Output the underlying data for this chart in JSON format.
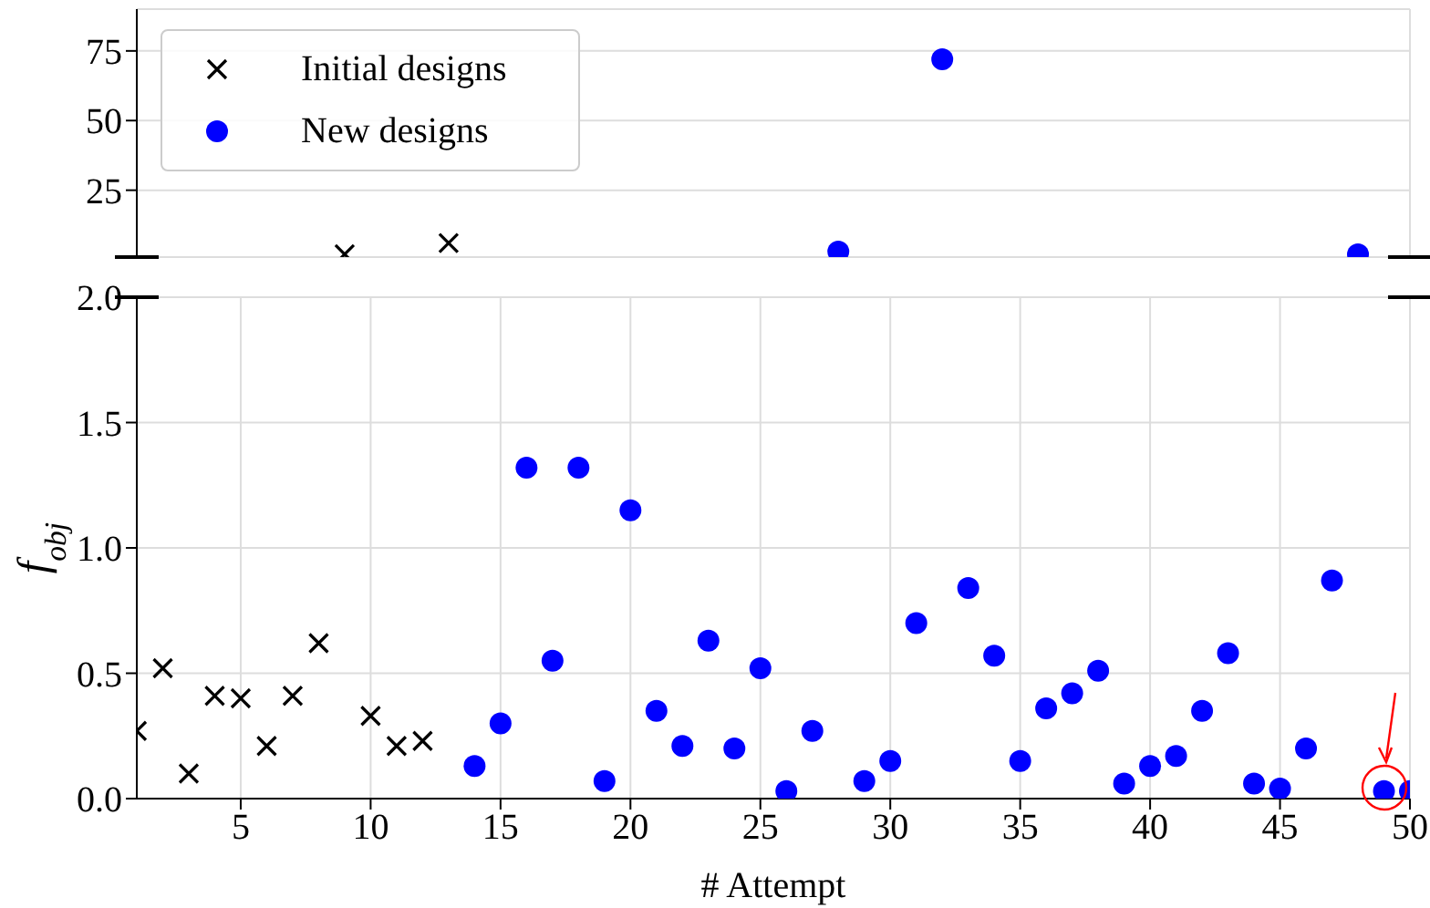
{
  "chart_data": [
    {
      "type": "scatter",
      "xlim": [
        1,
        50
      ],
      "xticks": [
        5,
        10,
        15,
        20,
        25,
        30,
        35,
        40,
        45,
        50
      ],
      "ylim": [
        1,
        90
      ],
      "yticks": [
        25,
        50,
        75
      ],
      "grid": true,
      "legend": "top left",
      "tick_labels": "y",
      "series": [
        {
          "name": "Initial designs",
          "color": "#000000",
          "marker": "cross",
          "x": [
            9,
            13
          ],
          "values": [
            2,
            6
          ]
        },
        {
          "name": "New designs",
          "color": "#0000ff",
          "marker": "circle",
          "x": [
            28,
            32,
            48
          ],
          "values": [
            3,
            72,
            2
          ]
        }
      ]
    },
    {
      "type": "scatter",
      "xlabel": "# Attempt",
      "ylabel": "f$_{obj}$",
      "xlim": [
        1,
        50
      ],
      "xticks": [
        5,
        10,
        15,
        20,
        25,
        30,
        35,
        40,
        45,
        50
      ],
      "ylim": [
        0,
        2
      ],
      "yticks": [
        {
          "value": 0,
          "label": "0.0"
        },
        {
          "value": 0.5,
          "label": "0.5"
        },
        {
          "value": 1,
          "label": "1.0"
        },
        {
          "value": 1.5,
          "label": "1.5"
        },
        {
          "value": 2,
          "label": "2.0"
        }
      ],
      "grid": true,
      "series": [
        {
          "color": "#000000",
          "marker": "cross",
          "x": [
            1,
            2,
            3,
            4,
            5,
            6,
            7,
            8,
            10,
            11,
            12
          ],
          "values": [
            0.27,
            0.52,
            0.1,
            0.41,
            0.4,
            0.21,
            0.41,
            0.62,
            0.33,
            0.21,
            0.23
          ]
        },
        {
          "color": "#0000ff",
          "marker": "circle",
          "x": [
            14,
            15,
            16,
            17,
            18,
            19,
            20,
            21,
            22,
            23,
            24,
            25,
            26,
            27,
            29,
            30,
            31,
            33,
            34,
            35,
            36,
            37,
            38,
            39,
            40,
            41,
            42,
            43,
            44,
            45,
            46,
            47,
            49,
            50
          ],
          "values": [
            0.13,
            0.3,
            1.32,
            0.55,
            1.32,
            0.07,
            1.15,
            0.35,
            0.21,
            0.63,
            0.2,
            0.52,
            0.03,
            0.27,
            0.07,
            0.15,
            0.7,
            0.84,
            0.57,
            0.15,
            0.36,
            0.42,
            0.51,
            0.06,
            0.13,
            0.17,
            0.35,
            0.58,
            0.06,
            0.04,
            0.2,
            0.87,
            0.03,
            0.03
          ]
        }
      ]
    }
  ]
}
